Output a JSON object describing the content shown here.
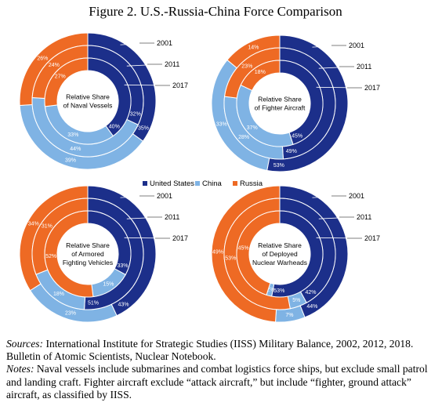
{
  "figure_title": "Figure 2. U.S.-Russia-China Force Comparison",
  "colors": {
    "United States": "#1c2f8a",
    "China": "#7fb3e4",
    "Russia": "#ee6a24"
  },
  "legend": [
    "United States",
    "China",
    "Russia"
  ],
  "chart_data": [
    {
      "type": "pie",
      "title": "Relative Share of Naval Vessels",
      "rings": [
        "2001",
        "2011",
        "2017"
      ],
      "series": [
        {
          "name": "United States",
          "values": [
            35,
            32,
            40
          ],
          "labels": [
            "35%",
            "32%",
            "40%"
          ]
        },
        {
          "name": "China",
          "values": [
            39,
            44,
            33
          ],
          "labels": [
            "39%",
            "44%",
            "33%"
          ]
        },
        {
          "name": "Russia",
          "values": [
            26,
            24,
            27
          ],
          "labels": [
            "26%",
            "24%",
            "27%"
          ]
        }
      ]
    },
    {
      "type": "pie",
      "title": "Relative Share of Fighter Aircraft",
      "rings": [
        "2001",
        "2011",
        "2017"
      ],
      "series": [
        {
          "name": "United States",
          "values": [
            53,
            49,
            45
          ],
          "labels": [
            "53%",
            "49%",
            "45%"
          ]
        },
        {
          "name": "China",
          "values": [
            33,
            28,
            37
          ],
          "labels": [
            "33%",
            "28%",
            "37%"
          ]
        },
        {
          "name": "Russia",
          "values": [
            14,
            23,
            18
          ],
          "labels": [
            "14%",
            "23%",
            "18%"
          ]
        }
      ]
    },
    {
      "type": "pie",
      "title": "Relative Share of Armored Fighting Vehicles",
      "rings": [
        "2001",
        "2011",
        "2017"
      ],
      "series": [
        {
          "name": "United States",
          "values": [
            43,
            51,
            33
          ],
          "labels": [
            "43%",
            "51%",
            "33%"
          ]
        },
        {
          "name": "China",
          "values": [
            23,
            18,
            15
          ],
          "labels": [
            "23%",
            "18%",
            "15%"
          ]
        },
        {
          "name": "Russia",
          "values": [
            34,
            31,
            52
          ],
          "labels": [
            "34%",
            "31%",
            "52%"
          ]
        }
      ]
    },
    {
      "type": "pie",
      "title": "Relative Share of Deployed Nuclear Warheads",
      "rings": [
        "2001",
        "2011",
        "2017"
      ],
      "series": [
        {
          "name": "United States",
          "values": [
            44,
            42,
            53
          ],
          "labels": [
            "44%",
            "42%",
            "53%"
          ]
        },
        {
          "name": "China",
          "values": [
            7,
            5,
            2
          ],
          "labels": [
            "7%",
            "5%",
            "2%"
          ]
        },
        {
          "name": "Russia",
          "values": [
            49,
            53,
            45
          ],
          "labels": [
            "49%",
            "53%",
            "45%"
          ]
        }
      ]
    }
  ],
  "sources": {
    "label": "Sources:",
    "text": " International Institute for Strategic Studies (IISS) Military Balance, 2002, 2012, 2018. Bulletin of Atomic Scientists, Nuclear Notebook."
  },
  "notes": {
    "label": "Notes:",
    "text": " Naval vessels include submarines and combat logistics force ships, but exclude small patrol and landing craft. Fighter aircraft exclude “attack aircraft,” but include “fighter, ground attack” aircraft, as classified by IISS."
  }
}
